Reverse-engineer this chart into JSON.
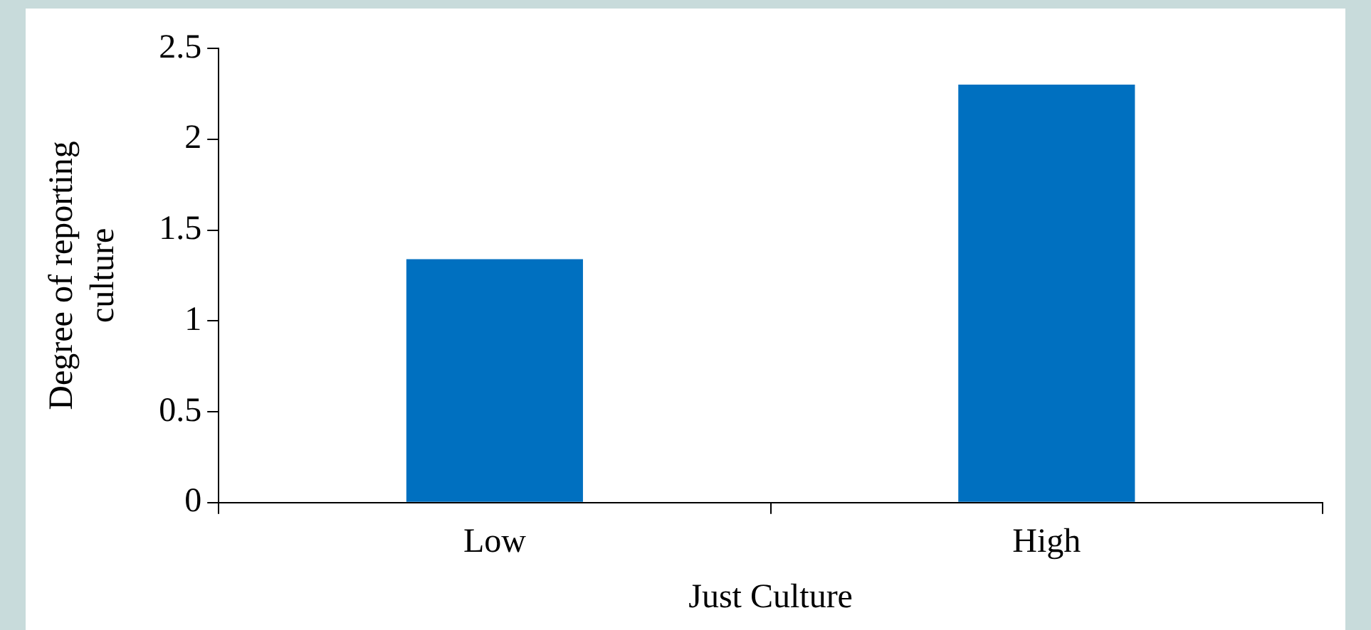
{
  "chart_data": {
    "type": "bar",
    "xlabel": "Just Culture",
    "ylabel": "Degree of reporting culture",
    "categories": [
      "Low",
      "High"
    ],
    "values": [
      1.34,
      2.3
    ],
    "color": "#0070c0",
    "ylim": [
      0,
      2.5
    ],
    "yticks": [
      0,
      0.5,
      1,
      1.5,
      2,
      2.5
    ],
    "grid": false,
    "legend": false
  }
}
